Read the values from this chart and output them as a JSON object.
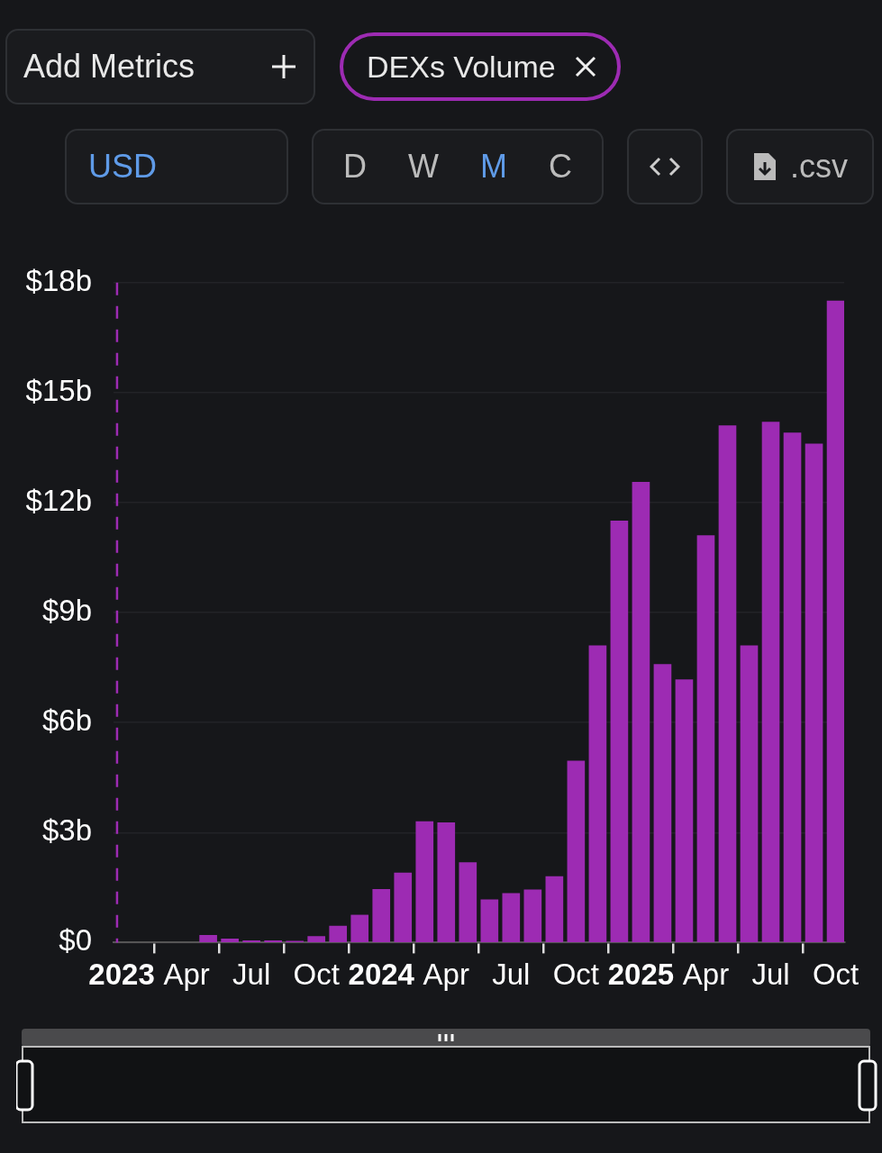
{
  "chart_data": {
    "type": "bar",
    "x": [
      "2023-05",
      "2023-06",
      "2023-07",
      "2023-08",
      "2023-09",
      "2023-10",
      "2023-11",
      "2023-12",
      "2024-01",
      "2024-02",
      "2024-03",
      "2024-04",
      "2024-05",
      "2024-06",
      "2024-07",
      "2024-08",
      "2024-09",
      "2024-10",
      "2024-11",
      "2024-12",
      "2025-01",
      "2025-02",
      "2025-03",
      "2025-04",
      "2025-05",
      "2025-06",
      "2025-07",
      "2025-08",
      "2025-09",
      "2025-10"
    ],
    "series": [
      {
        "name": "DEXs Volume",
        "color": "#9d2bb3",
        "values": [
          0.2,
          0.1,
          0.05,
          0.05,
          0.04,
          0.17,
          0.45,
          0.75,
          1.45,
          1.9,
          3.3,
          3.27,
          2.18,
          1.17,
          1.34,
          1.44,
          1.8,
          4.95,
          8.1,
          11.5,
          12.56,
          7.59,
          7.17,
          11.1,
          14.1,
          8.1,
          14.2,
          13.9,
          13.6,
          17.5
        ]
      }
    ],
    "xlim": [
      "2022-12-20",
      "2025-10-13"
    ],
    "xticks": [
      {
        "value": "2023-01",
        "label": "2023"
      },
      {
        "value": "2023-04",
        "label": "Apr"
      },
      {
        "value": "2023-07",
        "label": "Jul"
      },
      {
        "value": "2023-10",
        "label": "Oct"
      },
      {
        "value": "2024-01",
        "label": "2024"
      },
      {
        "value": "2024-04",
        "label": "Apr"
      },
      {
        "value": "2024-07",
        "label": "Jul"
      },
      {
        "value": "2024-10",
        "label": "Oct"
      },
      {
        "value": "2025-01",
        "label": "2025"
      },
      {
        "value": "2025-04",
        "label": "Apr"
      },
      {
        "value": "2025-07",
        "label": "Jul"
      },
      {
        "value": "2025-10",
        "label": "Oct"
      }
    ],
    "ylim": [
      0,
      18
    ],
    "yticks": [
      {
        "value": 0,
        "label": "$0"
      },
      {
        "value": 3,
        "label": "$3b"
      },
      {
        "value": 6,
        "label": "$6b"
      },
      {
        "value": 9,
        "label": "$9b"
      },
      {
        "value": 12,
        "label": "$12b"
      },
      {
        "value": 15,
        "label": "$15b"
      },
      {
        "value": 18,
        "label": "$18b"
      }
    ],
    "ref_lines": [
      {
        "axis": "x",
        "value": "2022-12-25",
        "color": "#9d2bb3",
        "line_style": "dashed"
      }
    ],
    "grid": "y",
    "legend": "top left",
    "annotations": [
      "Add Metrics",
      "USD",
      "D",
      "W",
      "M",
      "C",
      ".csv"
    ]
  }
}
